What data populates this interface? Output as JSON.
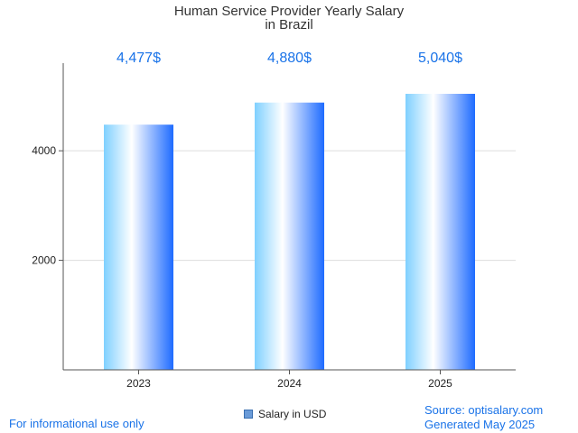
{
  "colors": {
    "accent": "#1a73e8",
    "axis": "#555555",
    "grid": "#dddddd",
    "bar_light": "#ffffff",
    "bar_mid": "#8fd3ff",
    "bar_dark": "#1e6bff"
  },
  "chart_data": {
    "type": "bar",
    "title": [
      "Human Service Provider Yearly Salary",
      "in Brazil"
    ],
    "categories": [
      "2023",
      "2024",
      "2025"
    ],
    "series": [
      {
        "name": "Salary in USD",
        "values": [
          4477,
          4880,
          5040
        ],
        "labels": [
          "4,477$",
          "4,880$",
          "5,040$"
        ]
      }
    ],
    "yticks": [
      "2000",
      "4000"
    ],
    "ylim": [
      0,
      5600
    ],
    "grid": true,
    "legend": "bottom-center"
  },
  "footer": {
    "disclaimer": "For informational use only",
    "source": "Source: optisalary.com",
    "generated": "Generated May 2025"
  }
}
